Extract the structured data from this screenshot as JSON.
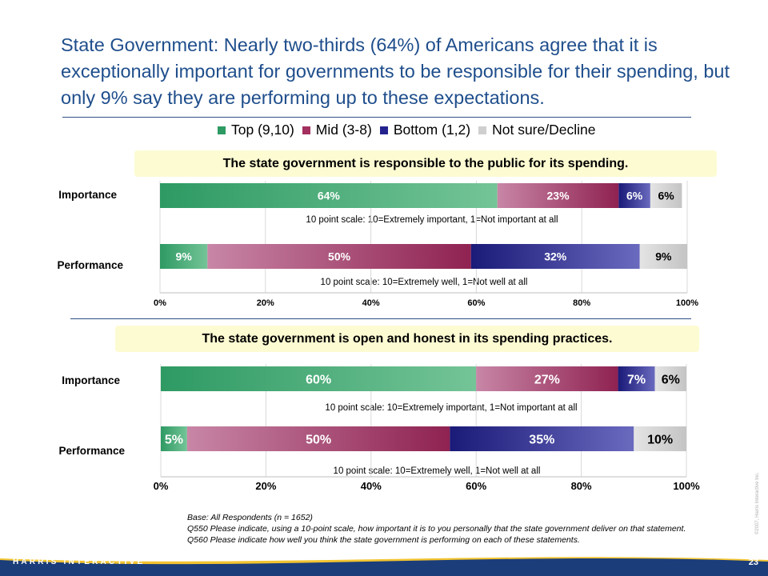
{
  "slide": {
    "title": "State Government: Nearly two-thirds (64%) of Americans agree that it is exceptionally important for governments to be responsible for their spending, but only 9% say they are performing up to these expectations.",
    "footnotes": [
      "Base: All Respondents (n = 1652)",
      "Q550 Please indicate, using a 10-point scale, how important it is to you personally that the state government deliver on that statement.",
      "Q560 Please indicate how well you think the state government is performing on each of these statements."
    ],
    "copyright": "©2007, Harris Interactive Inc.",
    "brand": "HARRIS INTERACTIVE",
    "page_number": "23"
  },
  "legend": [
    {
      "label": "Top (9,10)",
      "color": "#2e9a63"
    },
    {
      "label": "Mid (3-8)",
      "color": "#a3305f"
    },
    {
      "label": "Bottom (1,2)",
      "color": "#23238e"
    },
    {
      "label": "Not sure/Decline",
      "color": "#cfcfcf"
    }
  ],
  "chart_data": [
    {
      "type": "bar",
      "orientation": "horizontal",
      "stacked": true,
      "title": "The state government is responsible to the public for its spending.",
      "categories": [
        "Importance",
        "Performance"
      ],
      "series": [
        {
          "name": "Top (9,10)",
          "values": [
            64,
            9
          ]
        },
        {
          "name": "Mid (3-8)",
          "values": [
            23,
            50
          ]
        },
        {
          "name": "Bottom (1,2)",
          "values": [
            6,
            32
          ]
        },
        {
          "name": "Not sure/Decline",
          "values": [
            6,
            9
          ]
        }
      ],
      "data_labels": [
        [
          "64%",
          "23%",
          "6%",
          "6%"
        ],
        [
          "9%",
          "50%",
          "32%",
          "9%"
        ]
      ],
      "notes": [
        "10 point scale: 10=Extremely important, 1=Not important at all",
        "10 point scale: 10=Extremely well, 1=Not well at all"
      ],
      "xticks": [
        "0%",
        "20%",
        "40%",
        "60%",
        "80%",
        "100%"
      ],
      "xlim": [
        0,
        100
      ]
    },
    {
      "type": "bar",
      "orientation": "horizontal",
      "stacked": true,
      "title": "The state government is open and honest in its spending practices.",
      "categories": [
        "Importance",
        "Performance"
      ],
      "series": [
        {
          "name": "Top (9,10)",
          "values": [
            60,
            5
          ]
        },
        {
          "name": "Mid (3-8)",
          "values": [
            27,
            50
          ]
        },
        {
          "name": "Bottom (1,2)",
          "values": [
            7,
            35
          ]
        },
        {
          "name": "Not sure/Decline",
          "values": [
            6,
            10
          ]
        }
      ],
      "data_labels": [
        [
          "60%",
          "27%",
          "7%",
          "6%"
        ],
        [
          "5%",
          "50%",
          "35%",
          "10%"
        ]
      ],
      "notes": [
        "10 point scale: 10=Extremely important, 1=Not important at all",
        "10 point scale: 10=Extremely well, 1=Not well at all"
      ],
      "xticks": [
        "0%",
        "20%",
        "40%",
        "60%",
        "80%",
        "100%"
      ],
      "xlim": [
        0,
        100
      ]
    }
  ]
}
